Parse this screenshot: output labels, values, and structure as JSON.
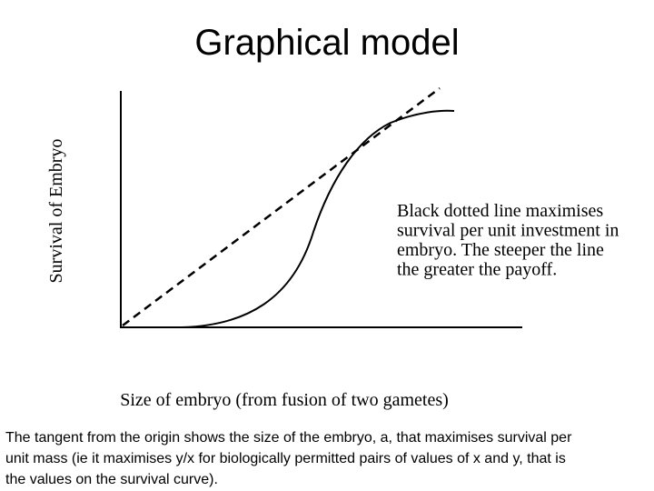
{
  "title": "Graphical model",
  "diagram": {
    "y_axis_label": "Survival of Embryo",
    "x_axis_label": "Size of embryo (from fusion of two gametes)",
    "annotation_lines": [
      "Black dotted line maximises",
      "survival per unit investment in",
      "embryo. The steeper the line",
      "the greater the payoff."
    ]
  },
  "caption_lines": [
    "The tangent from the origin shows the size of the embryo, a, that maximises survival per",
    "unit mass (ie it maximises y/x for biologically permitted pairs of values of x and y, that is",
    "the values on the survival curve)."
  ]
}
